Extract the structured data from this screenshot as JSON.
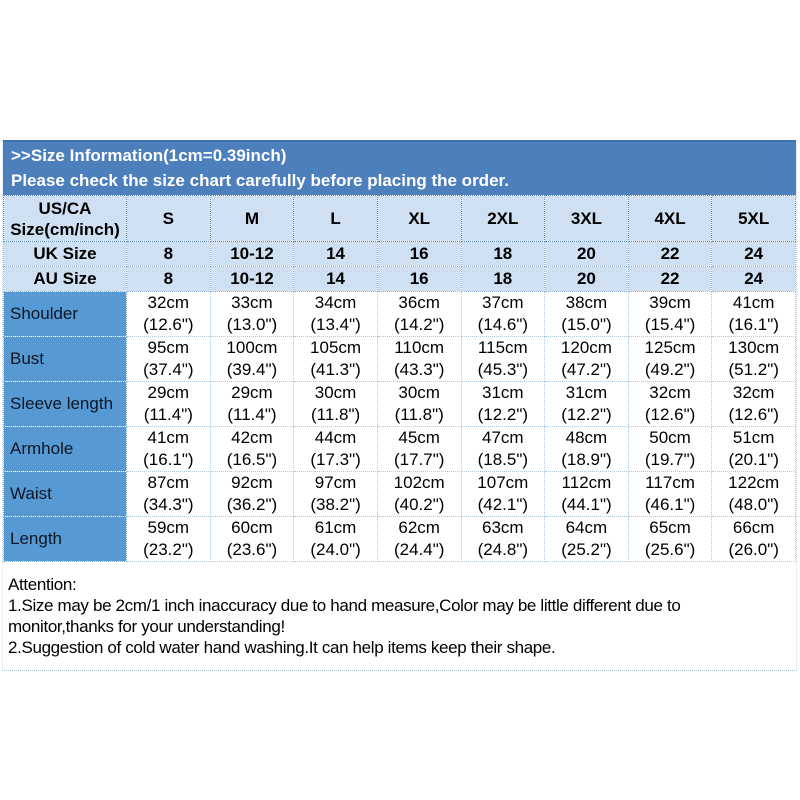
{
  "banner": {
    "line1": ">>Size Information(1cm=0.39inch)",
    "line2": "Please check the size chart carefully before placing the order."
  },
  "table": {
    "corner_header": {
      "line1": "US/CA",
      "line2": "Size(cm/inch)"
    },
    "size_columns": [
      "S",
      "M",
      "L",
      "XL",
      "2XL",
      "3XL",
      "4XL",
      "5XL"
    ],
    "conversion_rows": [
      {
        "label": "UK Size",
        "values": [
          "8",
          "10-12",
          "14",
          "16",
          "18",
          "20",
          "22",
          "24"
        ]
      },
      {
        "label": "AU Size",
        "values": [
          "8",
          "10-12",
          "14",
          "16",
          "18",
          "20",
          "22",
          "24"
        ]
      }
    ],
    "measurement_rows": [
      {
        "label": "Shoulder",
        "cm": [
          "32cm",
          "33cm",
          "34cm",
          "36cm",
          "37cm",
          "38cm",
          "39cm",
          "41cm"
        ],
        "inch": [
          "(12.6\")",
          "(13.0\")",
          "(13.4\")",
          "(14.2\")",
          "(14.6\")",
          "(15.0\")",
          "(15.4\")",
          "(16.1\")"
        ]
      },
      {
        "label": "Bust",
        "cm": [
          "95cm",
          "100cm",
          "105cm",
          "110cm",
          "115cm",
          "120cm",
          "125cm",
          "130cm"
        ],
        "inch": [
          "(37.4\")",
          "(39.4\")",
          "(41.3\")",
          "(43.3\")",
          "(45.3\")",
          "(47.2\")",
          "(49.2\")",
          "(51.2\")"
        ]
      },
      {
        "label": "Sleeve length",
        "cm": [
          "29cm",
          "29cm",
          "30cm",
          "30cm",
          "31cm",
          "31cm",
          "32cm",
          "32cm"
        ],
        "inch": [
          "(11.4\")",
          "(11.4\")",
          "(11.8\")",
          "(11.8\")",
          "(12.2\")",
          "(12.2\")",
          "(12.6\")",
          "(12.6\")"
        ]
      },
      {
        "label": "Armhole",
        "cm": [
          "41cm",
          "42cm",
          "44cm",
          "45cm",
          "47cm",
          "48cm",
          "50cm",
          "51cm"
        ],
        "inch": [
          "(16.1\")",
          "(16.5\")",
          "(17.3\")",
          "(17.7\")",
          "(18.5\")",
          "(18.9\")",
          "(19.7\")",
          "(20.1\")"
        ]
      },
      {
        "label": "Waist",
        "cm": [
          "87cm",
          "92cm",
          "97cm",
          "102cm",
          "107cm",
          "112cm",
          "117cm",
          "122cm"
        ],
        "inch": [
          "(34.3\")",
          "(36.2\")",
          "(38.2\")",
          "(40.2\")",
          "(42.1\")",
          "(44.1\")",
          "(46.1\")",
          "(48.0\")"
        ]
      },
      {
        "label": "Length",
        "cm": [
          "59cm",
          "60cm",
          "61cm",
          "62cm",
          "63cm",
          "64cm",
          "65cm",
          "66cm"
        ],
        "inch": [
          "(23.2\")",
          "(23.6\")",
          "(24.0\")",
          "(24.4\")",
          "(24.8\")",
          "(25.2\")",
          "(25.6\")",
          "(26.0\")"
        ]
      }
    ]
  },
  "attention": {
    "title": "Attention:",
    "note1": "1.Size may be 2cm/1 inch inaccuracy due to hand measure,Color may be little different due to monitor,thanks for your understanding!",
    "note2": "2.Suggestion of cold water hand washing.It can help items keep their shape."
  },
  "colors": {
    "banner_blue": "#4d7fbd",
    "header_cell_blue": "#cfe0f2",
    "label_column_blue": "#579ad3"
  }
}
